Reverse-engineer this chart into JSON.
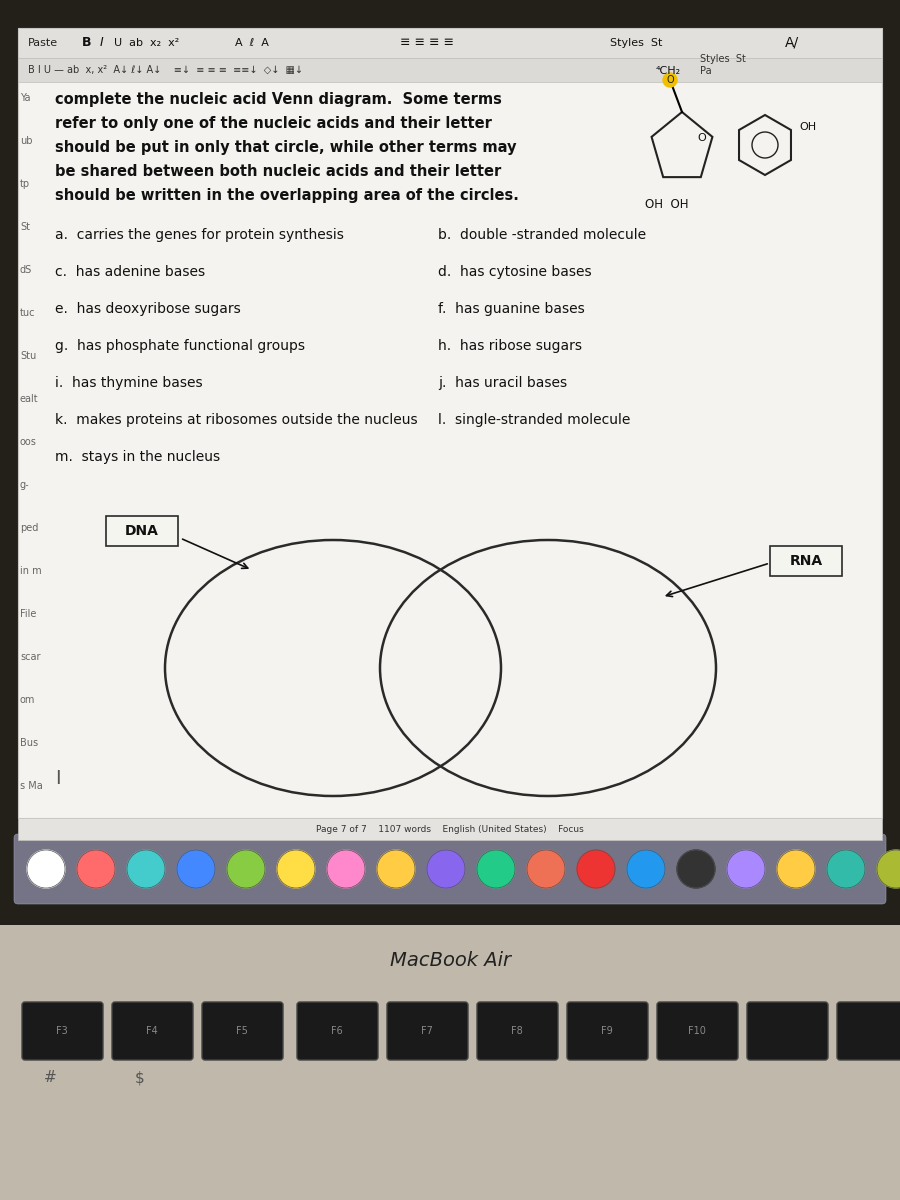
{
  "background_color": "#b8b0a0",
  "screen_bg": "#f5f3ef",
  "instructions": "complete the nucleic acid Venn diagram.  Some terms\nrefer to only one of the nucleic acids and their letter\nshould be put in only that circle, while other terms may\nbe shared between both nucleic acids and their letter\nshould be written in the overlapping area of the circles.",
  "left_terms": [
    "a.  carries the genes for protein synthesis",
    "c.  has adenine bases",
    "e.  has deoxyribose sugars",
    "g.  has phosphate functional groups",
    "i.  has thymine bases",
    "k.  makes proteins at ribosomes outside the nucleus",
    "m.  stays in the nucleus"
  ],
  "right_terms": [
    "b.  double -stranded molecule",
    "d.  has cytosine bases",
    "f.  has guanine bases",
    "h.  has ribose sugars",
    "j.  has uracil bases",
    "l.  single-stranded molecule"
  ],
  "dna_label": "DNA",
  "rna_label": "RNA",
  "circle_color": "#2a2a2a",
  "circle_linewidth": 1.8,
  "label_box_color": "#f5f5f0",
  "label_box_edge": "#2a2a2a",
  "sidebar_items": [
    "Ya",
    "ub",
    "tp",
    "St",
    "dS",
    "tuc",
    "Stu",
    "ealt",
    "oos",
    "g-",
    "ped",
    "in m",
    "File",
    "scar",
    "om",
    "Bus",
    "s Ma"
  ],
  "macbook_label": "MacBook Air",
  "footer": "Page 7 of 7    1107 words    English (United States)    Focus",
  "dock_colors": [
    "#ffffff",
    "#ff6b6b",
    "#44cccc",
    "#4488ff",
    "#88cc44",
    "#ffdd44",
    "#ff88cc",
    "#ffcc44",
    "#8866ee",
    "#22cc88",
    "#ee7055",
    "#ee3333",
    "#2299ee",
    "#333333",
    "#aa88ff",
    "#ffcc44",
    "#33bbaa",
    "#aabb33"
  ]
}
